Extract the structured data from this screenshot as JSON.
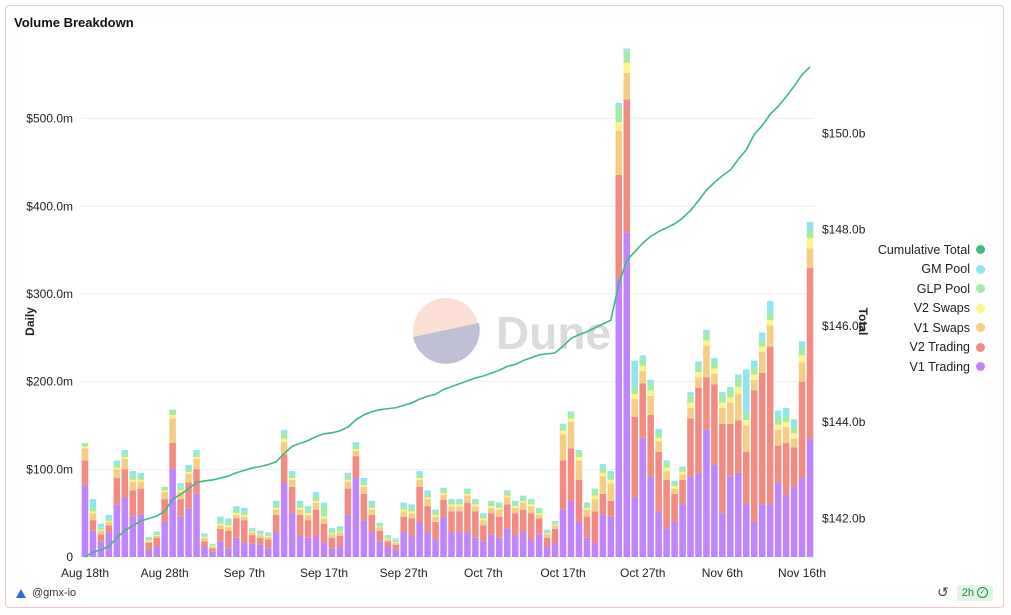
{
  "title": "Volume Breakdown",
  "footer": {
    "user": "@gmx-io",
    "refresh_interval": "2h"
  },
  "watermark": "Dune",
  "chart_data": {
    "type": "bar",
    "stacked": true,
    "categories": [
      "Aug 18th",
      "Aug 19th",
      "Aug 20th",
      "Aug 21st",
      "Aug 22nd",
      "Aug 23rd",
      "Aug 24th",
      "Aug 25th",
      "Aug 26th",
      "Aug 27th",
      "Aug 28th",
      "Aug 29th",
      "Aug 30th",
      "Aug 31st",
      "Sep 1st",
      "Sep 2nd",
      "Sep 3rd",
      "Sep 4th",
      "Sep 5th",
      "Sep 6th",
      "Sep 7th",
      "Sep 8th",
      "Sep 9th",
      "Sep 10th",
      "Sep 11th",
      "Sep 12th",
      "Sep 13th",
      "Sep 14th",
      "Sep 15th",
      "Sep 16th",
      "Sep 17th",
      "Sep 18th",
      "Sep 19th",
      "Sep 20th",
      "Sep 21st",
      "Sep 22nd",
      "Sep 23rd",
      "Sep 24th",
      "Sep 25th",
      "Sep 26th",
      "Sep 27th",
      "Sep 28th",
      "Sep 29th",
      "Sep 30th",
      "Oct 1st",
      "Oct 2nd",
      "Oct 3rd",
      "Oct 4th",
      "Oct 5th",
      "Oct 6th",
      "Oct 7th",
      "Oct 8th",
      "Oct 9th",
      "Oct 10th",
      "Oct 11th",
      "Oct 12th",
      "Oct 13th",
      "Oct 14th",
      "Oct 15th",
      "Oct 16th",
      "Oct 17th",
      "Oct 18th",
      "Oct 19th",
      "Oct 20th",
      "Oct 21st",
      "Oct 22nd",
      "Oct 23rd",
      "Oct 24th",
      "Oct 25th",
      "Oct 26th",
      "Oct 27th",
      "Oct 28th",
      "Oct 29th",
      "Oct 30th",
      "Oct 31st",
      "Nov 1st",
      "Nov 2nd",
      "Nov 3rd",
      "Nov 4th",
      "Nov 5th",
      "Nov 6th",
      "Nov 7th",
      "Nov 8th",
      "Nov 9th",
      "Nov 10th",
      "Nov 11th",
      "Nov 12th",
      "Nov 13th",
      "Nov 14th",
      "Nov 15th",
      "Nov 16th",
      "Nov 17th"
    ],
    "x_tick_labels": [
      "Aug 18th",
      "Aug 28th",
      "Sep 7th",
      "Sep 17th",
      "Sep 27th",
      "Oct 7th",
      "Oct 17th",
      "Oct 27th",
      "Nov 6th",
      "Nov 16th"
    ],
    "y_left": {
      "label": "Daily",
      "range": [
        0,
        560
      ],
      "ticks": [
        0,
        100,
        200,
        300,
        400,
        500
      ],
      "tick_labels": [
        "0",
        "$100.0m",
        "$200.0m",
        "$300.0m",
        "$400.0m",
        "$500.0m"
      ]
    },
    "y_right": {
      "label": "Total",
      "range": [
        141.2,
        151.4
      ],
      "ticks": [
        142,
        144,
        146,
        148,
        150
      ],
      "tick_labels": [
        "$142.0b",
        "$144.0b",
        "$146.0b",
        "$148.0b",
        "$150.0b"
      ]
    },
    "legend_position": "right",
    "series": [
      {
        "name": "V1 Trading",
        "color": "#c084fc",
        "values": [
          82,
          30,
          18,
          28,
          60,
          68,
          46,
          48,
          8,
          12,
          40,
          100,
          46,
          55,
          72,
          12,
          6,
          18,
          10,
          22,
          16,
          15,
          14,
          10,
          28,
          85,
          50,
          24,
          22,
          24,
          16,
          10,
          12,
          48,
          90,
          42,
          28,
          18,
          12,
          8,
          28,
          24,
          40,
          28,
          20,
          45,
          28,
          28,
          28,
          22,
          18,
          26,
          22,
          32,
          24,
          28,
          20,
          26,
          12,
          16,
          54,
          64,
          40,
          22,
          16,
          48,
          46,
          318,
          370,
          68,
          136,
          92,
          52,
          32,
          40,
          60,
          92,
          95,
          145,
          105,
          50,
          92,
          96,
          60,
          40,
          60,
          60,
          85,
          70,
          80,
          90,
          135
        ]
      },
      {
        "name": "V2 Trading",
        "color": "#f28b82",
        "values": [
          28,
          12,
          8,
          8,
          30,
          32,
          30,
          30,
          8,
          10,
          26,
          30,
          20,
          30,
          28,
          6,
          4,
          14,
          20,
          22,
          26,
          10,
          8,
          10,
          20,
          32,
          30,
          24,
          20,
          30,
          22,
          12,
          12,
          30,
          25,
          30,
          20,
          12,
          6,
          6,
          18,
          20,
          40,
          30,
          20,
          20,
          24,
          24,
          34,
          30,
          18,
          24,
          24,
          28,
          26,
          26,
          30,
          18,
          10,
          16,
          56,
          60,
          48,
          24,
          36,
          24,
          18,
          118,
          152,
          92,
          62,
          70,
          68,
          56,
          32,
          28,
          66,
          98,
          60,
          92,
          102,
          60,
          60,
          60,
          150,
          150,
          180,
          42,
          60,
          45,
          110,
          195
        ]
      },
      {
        "name": "V1 Swaps",
        "color": "#f5cd85",
        "values": [
          14,
          8,
          4,
          4,
          10,
          12,
          10,
          8,
          2,
          2,
          8,
          28,
          8,
          10,
          12,
          4,
          2,
          4,
          4,
          4,
          4,
          3,
          3,
          3,
          6,
          14,
          8,
          6,
          6,
          8,
          6,
          4,
          4,
          8,
          6,
          8,
          6,
          4,
          2,
          2,
          6,
          6,
          8,
          8,
          6,
          6,
          6,
          6,
          8,
          6,
          6,
          6,
          8,
          8,
          6,
          8,
          8,
          4,
          4,
          4,
          30,
          30,
          22,
          8,
          14,
          20,
          20,
          50,
          30,
          20,
          14,
          22,
          12,
          10,
          6,
          6,
          12,
          12,
          36,
          12,
          18,
          24,
          30,
          30,
          12,
          24,
          24,
          18,
          18,
          10,
          22,
          22
        ]
      },
      {
        "name": "V2 Swaps",
        "color": "#fdf48a",
        "values": [
          2,
          2,
          1,
          1,
          2,
          2,
          2,
          2,
          1,
          1,
          2,
          4,
          2,
          2,
          2,
          1,
          1,
          2,
          2,
          2,
          2,
          1,
          1,
          1,
          2,
          4,
          2,
          2,
          2,
          2,
          2,
          1,
          1,
          2,
          2,
          2,
          2,
          1,
          1,
          1,
          2,
          2,
          2,
          2,
          2,
          2,
          2,
          2,
          2,
          2,
          2,
          2,
          2,
          2,
          2,
          2,
          2,
          2,
          1,
          1,
          4,
          4,
          4,
          2,
          4,
          4,
          4,
          10,
          12,
          6,
          6,
          6,
          4,
          4,
          3,
          3,
          6,
          6,
          6,
          6,
          6,
          6,
          8,
          6,
          6,
          6,
          6,
          6,
          6,
          6,
          8,
          12
        ]
      },
      {
        "name": "GLP Pool",
        "color": "#a5eba5",
        "values": [
          4,
          4,
          3,
          3,
          4,
          4,
          6,
          4,
          2,
          2,
          4,
          6,
          4,
          4,
          4,
          2,
          1,
          4,
          4,
          4,
          4,
          2,
          2,
          2,
          4,
          6,
          4,
          4,
          4,
          6,
          12,
          4,
          4,
          4,
          4,
          4,
          4,
          2,
          2,
          2,
          4,
          4,
          4,
          4,
          4,
          4,
          4,
          4,
          4,
          4,
          4,
          4,
          4,
          4,
          4,
          4,
          4,
          4,
          2,
          2,
          6,
          6,
          6,
          4,
          6,
          6,
          6,
          18,
          14,
          8,
          8,
          8,
          6,
          6,
          4,
          4,
          8,
          8,
          8,
          8,
          8,
          8,
          10,
          8,
          8,
          8,
          8,
          8,
          8,
          8,
          8,
          10
        ]
      },
      {
        "name": "GM Pool",
        "color": "#8fe6ee",
        "values": [
          0,
          10,
          4,
          4,
          4,
          4,
          4,
          4,
          2,
          2,
          0,
          0,
          4,
          4,
          4,
          2,
          1,
          4,
          4,
          4,
          4,
          2,
          2,
          2,
          4,
          4,
          4,
          4,
          4,
          4,
          4,
          2,
          2,
          4,
          4,
          4,
          4,
          2,
          2,
          2,
          4,
          4,
          4,
          4,
          2,
          2,
          2,
          2,
          2,
          2,
          2,
          2,
          2,
          2,
          2,
          2,
          2,
          2,
          2,
          2,
          2,
          2,
          2,
          2,
          2,
          4,
          4,
          4,
          2,
          30,
          4,
          4,
          4,
          2,
          2,
          2,
          4,
          4,
          4,
          4,
          4,
          4,
          4,
          50,
          8,
          8,
          14,
          8,
          8,
          8,
          8,
          8
        ]
      }
    ],
    "line_series": {
      "name": "Cumulative Total",
      "color": "#41b883",
      "axis": "right",
      "values": [
        141.2,
        141.3,
        141.35,
        141.42,
        141.6,
        141.75,
        141.85,
        141.95,
        142.0,
        142.05,
        142.15,
        142.4,
        142.5,
        142.62,
        142.75,
        142.78,
        142.8,
        142.84,
        142.88,
        142.95,
        143.0,
        143.05,
        143.08,
        143.12,
        143.18,
        143.35,
        143.5,
        143.56,
        143.62,
        143.7,
        143.76,
        143.78,
        143.82,
        143.9,
        144.05,
        144.15,
        144.22,
        144.26,
        144.28,
        144.3,
        144.35,
        144.4,
        144.48,
        144.54,
        144.58,
        144.68,
        144.74,
        144.8,
        144.86,
        144.92,
        144.96,
        145.02,
        145.08,
        145.16,
        145.2,
        145.28,
        145.34,
        145.4,
        145.42,
        145.44,
        145.58,
        145.74,
        145.82,
        145.88,
        145.96,
        146.04,
        146.12,
        146.88,
        147.36,
        147.54,
        147.72,
        147.86,
        147.96,
        148.04,
        148.12,
        148.24,
        148.4,
        148.6,
        148.82,
        148.98,
        149.12,
        149.24,
        149.46,
        149.66,
        149.98,
        150.16,
        150.4,
        150.56,
        150.76,
        150.98,
        151.22,
        151.38
      ]
    }
  }
}
